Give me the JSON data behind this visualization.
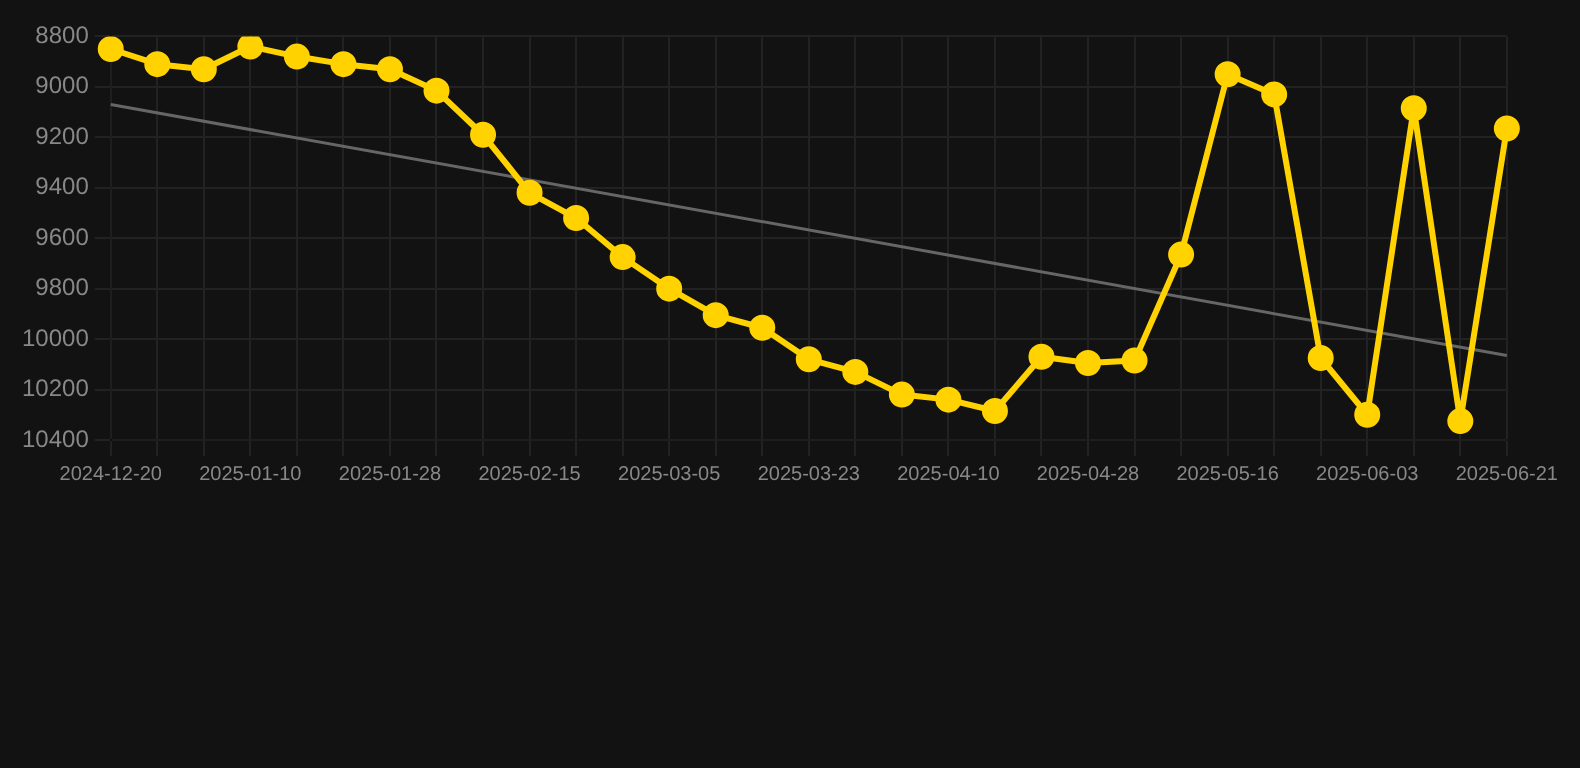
{
  "chart_data": {
    "type": "line",
    "categories": [
      "2024-12-20",
      null,
      null,
      "2025-01-10",
      null,
      null,
      "2025-01-28",
      null,
      null,
      "2025-02-15",
      null,
      null,
      "2025-03-05",
      null,
      null,
      "2025-03-23",
      null,
      null,
      "2025-04-10",
      null,
      null,
      "2025-04-28",
      null,
      null,
      "2025-05-16",
      null,
      null,
      "2025-06-03",
      null,
      null,
      "2025-06-21"
    ],
    "series": [
      {
        "color": "#ffd200",
        "marker": "circle",
        "values": [
          8850,
          8910,
          8930,
          8840,
          8880,
          8910,
          8930,
          9015,
          9190,
          9420,
          9520,
          9675,
          9800,
          9905,
          9955,
          10080,
          10130,
          10220,
          10240,
          10285,
          10070,
          10095,
          10085,
          9665,
          8950,
          9030,
          10075,
          10300,
          9085,
          10325,
          9165
        ]
      },
      {
        "type": "line",
        "color": "#666666",
        "marker": "none",
        "values": [
          9070,
          null,
          null,
          null,
          null,
          null,
          null,
          null,
          null,
          null,
          null,
          null,
          null,
          null,
          null,
          null,
          null,
          null,
          null,
          null,
          null,
          null,
          null,
          null,
          null,
          null,
          null,
          null,
          null,
          null,
          10065
        ]
      }
    ],
    "ylim": [
      10400,
      8800
    ],
    "yticks": [
      8800,
      9000,
      9200,
      9400,
      9600,
      9800,
      10000,
      10200,
      10400
    ],
    "grid": true
  }
}
